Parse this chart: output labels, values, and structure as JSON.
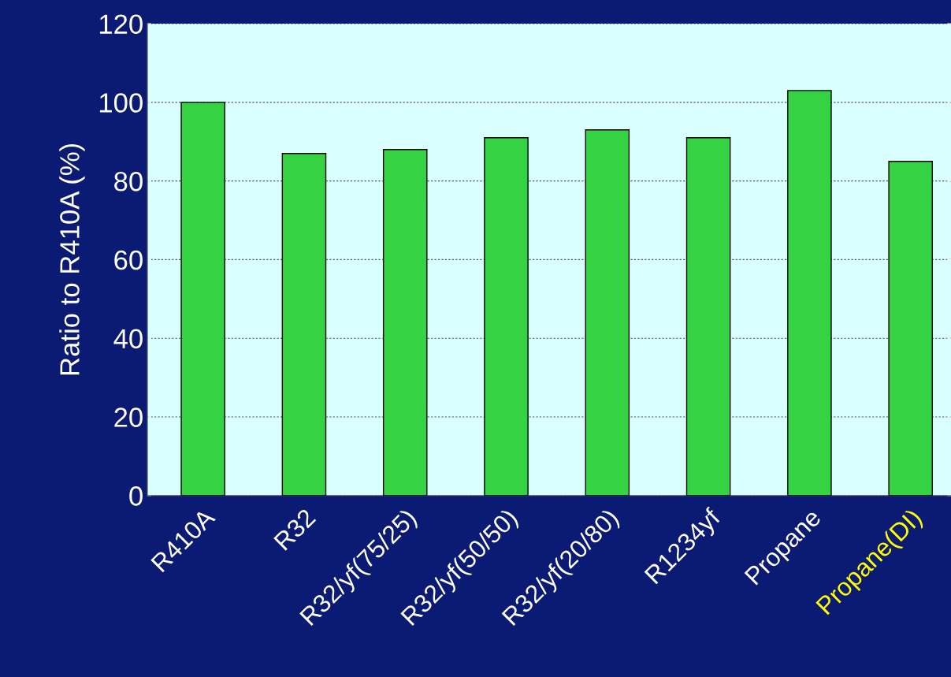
{
  "chart_data": {
    "type": "bar",
    "ylabel": "Ratio to R410A (%)",
    "categories": [
      "R410A",
      "R32",
      "R32/yf(75/25)",
      "R32/yf(50/50)",
      "R32/yf(20/80)",
      "R1234yf",
      "Propane",
      "Propane(DI)"
    ],
    "values": [
      100,
      87,
      88,
      91,
      93,
      91,
      103,
      85
    ],
    "color": "#35d243",
    "ylim": [
      0,
      120
    ],
    "yticks": [
      0,
      20,
      40,
      60,
      80,
      100,
      120
    ],
    "grid": "y"
  }
}
